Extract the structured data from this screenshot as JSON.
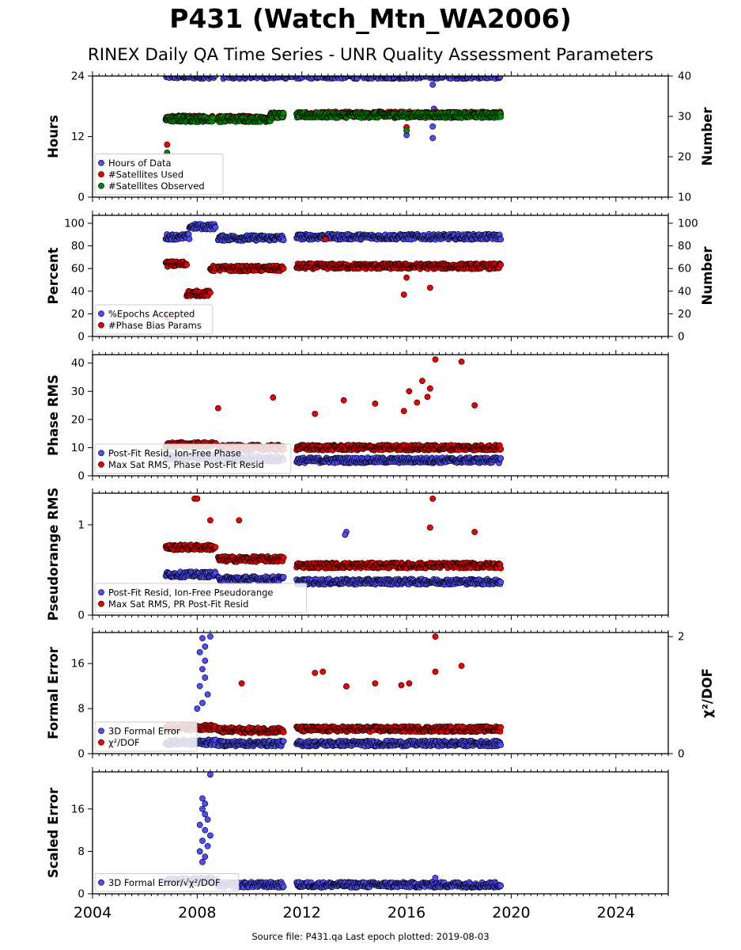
{
  "title": "P431 (Watch_Mtn_WA2006)",
  "subtitle": "RINEX Daily QA Time Series - UNR Quality Assessment Parameters",
  "source_note": "Source file: P431.qa Last epoch plotted: 2019-08-03",
  "colors": {
    "blue": "#4d4dff",
    "red": "#ee0000",
    "green": "#008800",
    "edge": "#000000"
  },
  "chart_data": [
    {
      "type": "scatter",
      "ylabel": "Hours",
      "ylim": [
        0,
        24
      ],
      "yticks": [
        "0",
        "12",
        "24"
      ],
      "y2label": "Number",
      "y2lim": [
        10,
        40
      ],
      "y2ticks": [
        "10",
        "20",
        "30",
        "40"
      ],
      "legend_position": "lower-left",
      "series": [
        {
          "name": "Hours of Data",
          "color": "blue",
          "axis": "left",
          "segments": [
            {
              "x0": 2006.8,
              "x1": 2008.7,
              "y": 24
            },
            {
              "x0": 2009.0,
              "x1": 2019.6,
              "y": 24
            }
          ],
          "outliers": [
            [
              2017.0,
              22.3
            ],
            [
              2017.05,
              17.5
            ],
            [
              2017.0,
              14.0
            ],
            [
              2017.0,
              11.7
            ],
            [
              2016.0,
              12.3
            ]
          ]
        },
        {
          "name": "#Satellites Used",
          "color": "red",
          "axis": "right",
          "segments": [
            {
              "x0": 2006.8,
              "x1": 2008.6,
              "y": 29.5
            },
            {
              "x0": 2008.8,
              "x1": 2010.8,
              "y": 29.5
            },
            {
              "x0": 2010.8,
              "x1": 2011.3,
              "y": 30.3
            },
            {
              "x0": 2011.8,
              "x1": 2019.6,
              "y": 30.5
            }
          ],
          "outliers": [
            [
              2006.85,
              23.0
            ],
            [
              2016.0,
              27.3
            ],
            [
              2009.9,
              30.0
            ]
          ]
        },
        {
          "name": "#Satellites Observed",
          "color": "green",
          "axis": "right",
          "segments": [
            {
              "x0": 2006.8,
              "x1": 2008.6,
              "y": 29.3
            },
            {
              "x0": 2008.8,
              "x1": 2010.8,
              "y": 29.3
            },
            {
              "x0": 2010.8,
              "x1": 2011.3,
              "y": 30.3
            },
            {
              "x0": 2011.8,
              "x1": 2019.6,
              "y": 30.3
            }
          ],
          "outliers": [
            [
              2006.85,
              21.0
            ],
            [
              2016.0,
              26.5
            ]
          ]
        }
      ]
    },
    {
      "type": "scatter",
      "ylabel": "Percent",
      "ylim": [
        0,
        107
      ],
      "yticks": [
        "0",
        "20",
        "40",
        "60",
        "80",
        "100"
      ],
      "y2label": "Number",
      "y2lim": [
        0,
        107
      ],
      "y2ticks": [
        "0",
        "20",
        "40",
        "60",
        "80",
        "100"
      ],
      "legend_position": "lower-left",
      "series": [
        {
          "name": "%Epochs Accepted",
          "color": "blue",
          "segments": [
            {
              "x0": 2006.8,
              "x1": 2007.7,
              "y": 88
            },
            {
              "x0": 2007.7,
              "x1": 2008.7,
              "y": 97
            },
            {
              "x0": 2008.8,
              "x1": 2011.3,
              "y": 87
            },
            {
              "x0": 2011.8,
              "x1": 2019.6,
              "y": 88
            }
          ],
          "outliers": [
            [
              2006.85,
              19.0
            ]
          ]
        },
        {
          "name": "#Phase Bias Params",
          "color": "red",
          "segments": [
            {
              "x0": 2006.8,
              "x1": 2007.6,
              "y": 64
            },
            {
              "x0": 2007.6,
              "x1": 2008.5,
              "y": 38
            },
            {
              "x0": 2008.5,
              "x1": 2008.7,
              "y": 60
            },
            {
              "x0": 2008.8,
              "x1": 2011.3,
              "y": 60
            },
            {
              "x0": 2011.8,
              "x1": 2019.6,
              "y": 62
            }
          ],
          "outliers": [
            [
              2012.9,
              86
            ],
            [
              2015.9,
              37
            ],
            [
              2016.9,
              43
            ],
            [
              2016.0,
              52
            ],
            [
              2006.85,
              17
            ]
          ]
        }
      ]
    },
    {
      "type": "scatter",
      "ylabel": "Phase RMS",
      "ylim": [
        0,
        43
      ],
      "yticks": [
        "0",
        "10",
        "20",
        "30",
        "40"
      ],
      "legend_position": "lower-left",
      "series": [
        {
          "name": "Post-Fit Resid, Ion-Free Phase",
          "color": "blue",
          "segments": [
            {
              "x0": 2006.8,
              "x1": 2008.7,
              "y": 6.5
            },
            {
              "x0": 2008.8,
              "x1": 2011.3,
              "y": 6.0
            },
            {
              "x0": 2011.8,
              "x1": 2019.6,
              "y": 5.5
            }
          ],
          "outliers": []
        },
        {
          "name": "Max Sat RMS, Phase Post-Fit Resid",
          "color": "red",
          "segments": [
            {
              "x0": 2006.8,
              "x1": 2008.7,
              "y": 11
            },
            {
              "x0": 2008.8,
              "x1": 2011.3,
              "y": 10
            },
            {
              "x0": 2011.8,
              "x1": 2019.6,
              "y": 10
            }
          ],
          "outliers": [
            [
              2017.1,
              41.3
            ],
            [
              2018.1,
              40.5
            ],
            [
              2016.6,
              33.7
            ],
            [
              2016.9,
              31.0
            ],
            [
              2016.1,
              30.0
            ],
            [
              2016.8,
              28.0
            ],
            [
              2010.9,
              27.8
            ],
            [
              2008.8,
              24.0
            ],
            [
              2013.6,
              26.8
            ],
            [
              2018.6,
              25.0
            ],
            [
              2014.8,
              25.6
            ],
            [
              2016.4,
              26.0
            ],
            [
              2015.9,
              23.0
            ],
            [
              2012.5,
              22.0
            ]
          ]
        }
      ]
    },
    {
      "type": "scatter",
      "ylabel": "Pseudorange RMS",
      "ylim": [
        0,
        1.35
      ],
      "yticks": [
        "0",
        "1"
      ],
      "legend_position": "lower-left",
      "series": [
        {
          "name": "Post-Fit Resid, Ion-Free Pseudorange",
          "color": "blue",
          "segments": [
            {
              "x0": 2006.8,
              "x1": 2008.7,
              "y": 0.45
            },
            {
              "x0": 2008.8,
              "x1": 2011.3,
              "y": 0.4
            },
            {
              "x0": 2011.8,
              "x1": 2019.6,
              "y": 0.37
            }
          ],
          "outliers": [
            [
              2013.7,
              0.92
            ],
            [
              2013.65,
              0.89
            ]
          ]
        },
        {
          "name": "Max Sat RMS, PR Post-Fit Resid",
          "color": "red",
          "segments": [
            {
              "x0": 2006.8,
              "x1": 2008.7,
              "y": 0.75
            },
            {
              "x0": 2008.8,
              "x1": 2011.3,
              "y": 0.62
            },
            {
              "x0": 2011.8,
              "x1": 2019.6,
              "y": 0.55
            }
          ],
          "outliers": [
            [
              2007.9,
              1.29
            ],
            [
              2008.0,
              1.29
            ],
            [
              2017.0,
              1.29
            ],
            [
              2016.9,
              0.97
            ],
            [
              2018.6,
              0.92
            ],
            [
              2008.5,
              1.05
            ],
            [
              2009.6,
              1.05
            ]
          ]
        }
      ]
    },
    {
      "type": "scatter",
      "ylabel": "Formal Error",
      "ylim": [
        0,
        21.5
      ],
      "yticks": [
        "0",
        "8",
        "16"
      ],
      "y2label": "χ²/DOF",
      "y2lim": [
        0,
        2.07
      ],
      "y2ticks": [
        "0",
        "2"
      ],
      "legend_position": "lower-left",
      "series": [
        {
          "name": "3D Formal Error",
          "color": "blue",
          "axis": "left",
          "segments": [
            {
              "x0": 2006.8,
              "x1": 2008.7,
              "y": 2.0
            },
            {
              "x0": 2008.8,
              "x1": 2011.3,
              "y": 1.8
            },
            {
              "x0": 2011.8,
              "x1": 2019.6,
              "y": 1.8
            }
          ],
          "outliers": [
            [
              2008.5,
              20.8
            ],
            [
              2008.2,
              20.5
            ],
            [
              2008.3,
              19.0
            ],
            [
              2008.1,
              18.0
            ],
            [
              2008.3,
              16.5
            ],
            [
              2008.2,
              15.0
            ],
            [
              2008.3,
              13.5
            ],
            [
              2008.1,
              12.0
            ],
            [
              2008.4,
              10.5
            ],
            [
              2008.2,
              9.0
            ],
            [
              2008.0,
              8.0
            ]
          ]
        },
        {
          "name": "χ²/DOF",
          "color": "red",
          "axis": "right",
          "segments": [
            {
              "x0": 2006.8,
              "x1": 2008.7,
              "y": 0.45
            },
            {
              "x0": 2008.8,
              "x1": 2011.3,
              "y": 0.4
            },
            {
              "x0": 2011.8,
              "x1": 2019.6,
              "y": 0.42
            }
          ],
          "outliers": [
            [
              2017.1,
              2.0
            ],
            [
              2017.1,
              1.4
            ],
            [
              2018.1,
              1.5
            ],
            [
              2012.8,
              1.4
            ],
            [
              2012.5,
              1.38
            ],
            [
              2009.7,
              1.2
            ],
            [
              2016.1,
              1.2
            ],
            [
              2014.8,
              1.2
            ],
            [
              2013.7,
              1.15
            ],
            [
              2015.8,
              1.17
            ]
          ]
        }
      ]
    },
    {
      "type": "scatter",
      "ylabel": "Scaled Error",
      "ylim": [
        0,
        23
      ],
      "yticks": [
        "0",
        "8",
        "16"
      ],
      "xlim": [
        2004,
        2026
      ],
      "xticks": [
        "2004",
        "2008",
        "2012",
        "2016",
        "2020",
        "2024"
      ],
      "legend_position": "lower-left",
      "series": [
        {
          "name": "3D Formal Error/√χ²/DOF",
          "color": "blue",
          "segments": [
            {
              "x0": 2006.8,
              "x1": 2008.7,
              "y": 2.5
            },
            {
              "x0": 2008.8,
              "x1": 2011.3,
              "y": 1.7
            },
            {
              "x0": 2011.8,
              "x1": 2019.6,
              "y": 1.7
            }
          ],
          "outliers": [
            [
              2008.5,
              22.5
            ],
            [
              2008.2,
              18.0
            ],
            [
              2008.3,
              17.0
            ],
            [
              2008.2,
              16.0
            ],
            [
              2008.3,
              15.0
            ],
            [
              2008.4,
              14.0
            ],
            [
              2008.1,
              13.0
            ],
            [
              2008.3,
              12.0
            ],
            [
              2008.5,
              11.0
            ],
            [
              2008.2,
              10.0
            ],
            [
              2008.4,
              9.0
            ],
            [
              2008.1,
              8.0
            ],
            [
              2008.3,
              7.0
            ],
            [
              2008.2,
              6.0
            ],
            [
              2017.1,
              3.0
            ]
          ]
        }
      ]
    }
  ]
}
